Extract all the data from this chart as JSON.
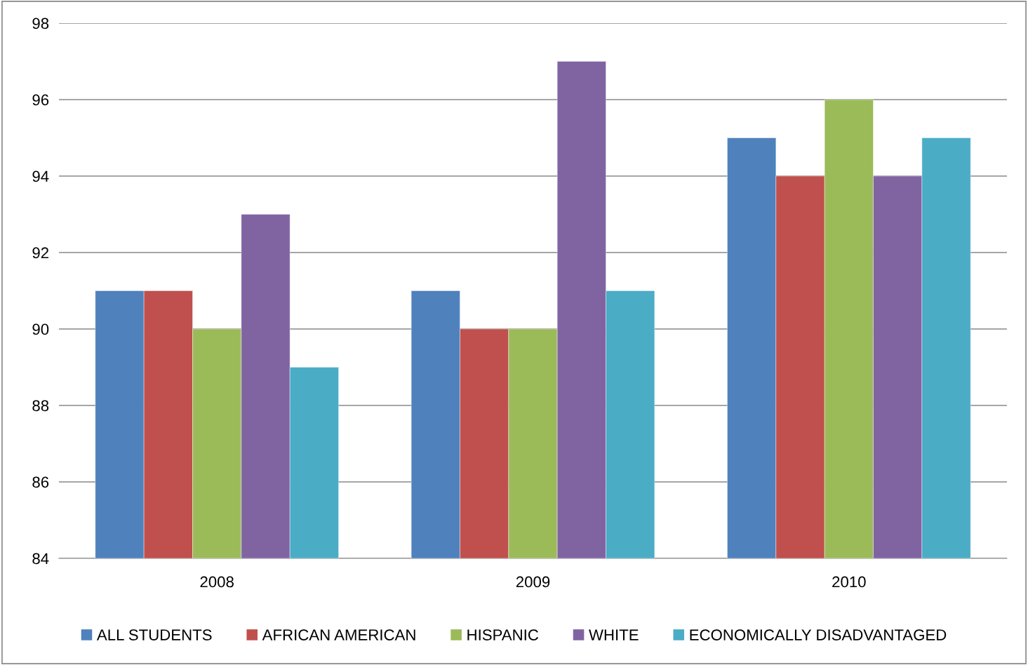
{
  "chart_data": {
    "type": "bar",
    "categories": [
      "2008",
      "2009",
      "2010"
    ],
    "series": [
      {
        "name": "ALL STUDENTS",
        "color": "#4f81bd",
        "values": [
          91,
          91,
          95
        ]
      },
      {
        "name": "AFRICAN AMERICAN",
        "color": "#c0504d",
        "values": [
          91,
          90,
          94
        ]
      },
      {
        "name": "HISPANIC",
        "color": "#9bbb59",
        "values": [
          90,
          90,
          96
        ]
      },
      {
        "name": "WHITE",
        "color": "#8064a2",
        "values": [
          93,
          97,
          94
        ]
      },
      {
        "name": "ECONOMICALLY DISADVANTAGED",
        "color": "#4bacc6",
        "values": [
          89,
          91,
          95
        ]
      }
    ],
    "ylim": [
      84,
      98
    ],
    "yticks": [
      84,
      86,
      88,
      90,
      92,
      94,
      96,
      98
    ],
    "grid": "y",
    "legend": "bottom"
  }
}
